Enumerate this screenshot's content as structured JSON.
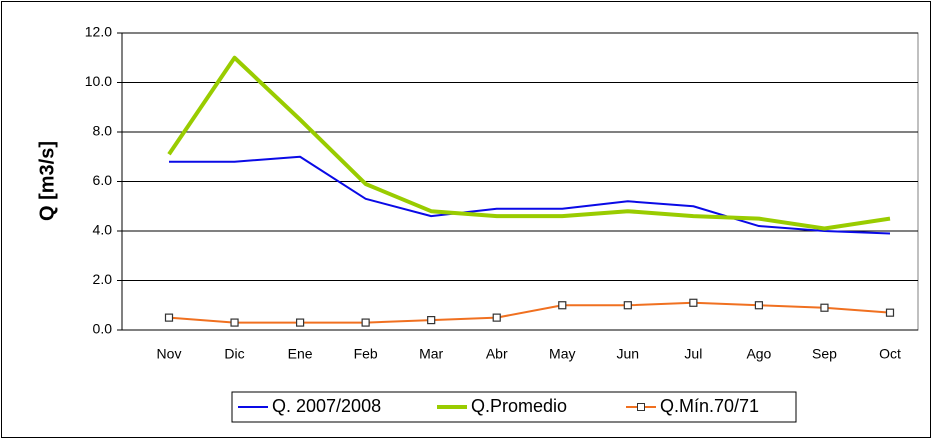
{
  "chart_data": {
    "type": "line",
    "y_label": "Q [m3/s]",
    "categories": [
      "Nov",
      "Dic",
      "Ene",
      "Feb",
      "Mar",
      "Abr",
      "May",
      "Jun",
      "Jul",
      "Ago",
      "Sep",
      "Oct"
    ],
    "series": [
      {
        "name": "Q. 2007/2008",
        "color": "#0a0ae6",
        "values": [
          6.8,
          6.8,
          7.0,
          5.3,
          4.6,
          4.9,
          4.9,
          5.2,
          5.0,
          4.2,
          4.0,
          3.9
        ]
      },
      {
        "name": "Q.Promedio",
        "color": "#99cc00",
        "values": [
          7.1,
          11.0,
          8.5,
          5.9,
          4.8,
          4.6,
          4.6,
          4.8,
          4.6,
          4.5,
          4.1,
          4.5
        ]
      },
      {
        "name": "Q.Mín.70/71",
        "color": "#f07020",
        "marker": "square",
        "values": [
          0.5,
          0.3,
          0.3,
          0.3,
          0.4,
          0.5,
          1.0,
          1.0,
          1.1,
          1.0,
          0.9,
          0.7
        ]
      }
    ],
    "ylim": [
      0,
      12
    ],
    "yticks": [
      {
        "value": 0,
        "label": "0.0"
      },
      {
        "value": 2,
        "label": "2.0"
      },
      {
        "value": 4,
        "label": "4.0"
      },
      {
        "value": 6,
        "label": "6.0"
      },
      {
        "value": 8,
        "label": "8.0"
      },
      {
        "value": 10,
        "label": "10.0"
      },
      {
        "value": 12,
        "label": "12.0"
      }
    ],
    "grid": true,
    "legend": "bottom"
  }
}
